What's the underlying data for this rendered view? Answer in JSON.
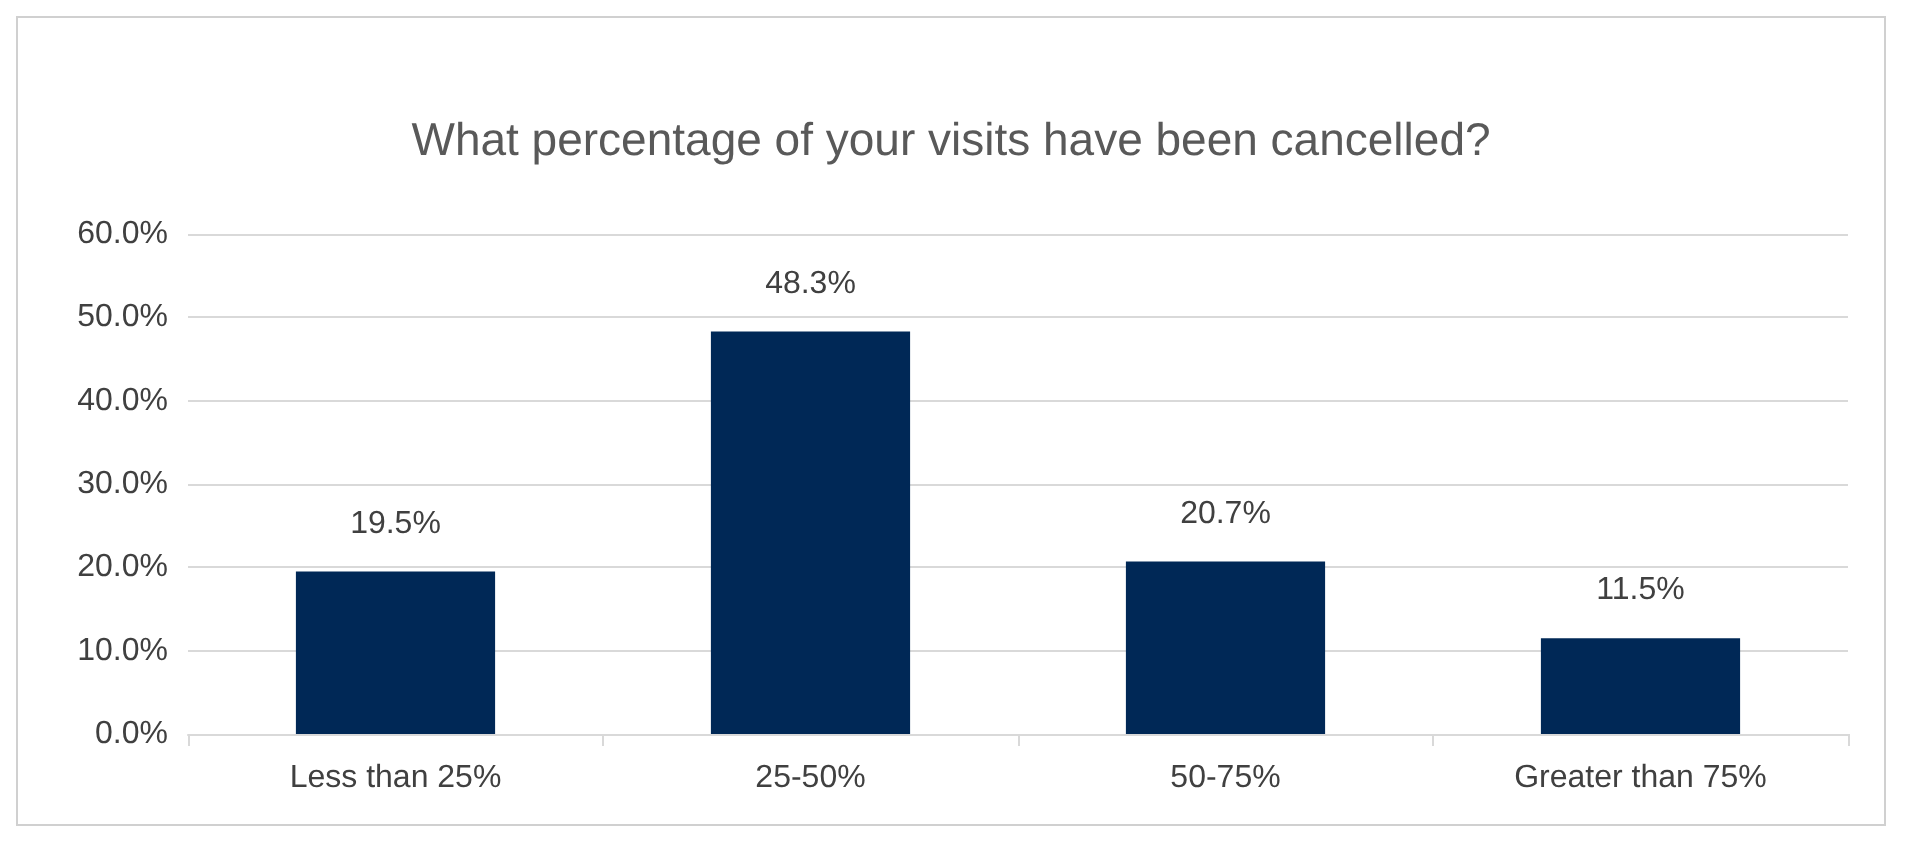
{
  "chart_data": {
    "type": "bar",
    "title": "What percentage of your visits have been cancelled?",
    "categories": [
      "Less than 25%",
      "25-50%",
      "50-75%",
      "Greater than 75%"
    ],
    "values": [
      19.5,
      48.3,
      20.7,
      11.5
    ],
    "value_labels": [
      "19.5%",
      "48.3%",
      "20.7%",
      "11.5%"
    ],
    "color": "#002856",
    "ylim": [
      0,
      60
    ],
    "yticks": [
      {
        "value": 0,
        "label": "0.0%"
      },
      {
        "value": 10,
        "label": "10.0%"
      },
      {
        "value": 20,
        "label": "20.0%"
      },
      {
        "value": 30,
        "label": "30.0%"
      },
      {
        "value": 40,
        "label": "40.0%"
      },
      {
        "value": 50,
        "label": "50.0%"
      },
      {
        "value": 60,
        "label": "60.0%"
      }
    ],
    "grid": "y"
  }
}
